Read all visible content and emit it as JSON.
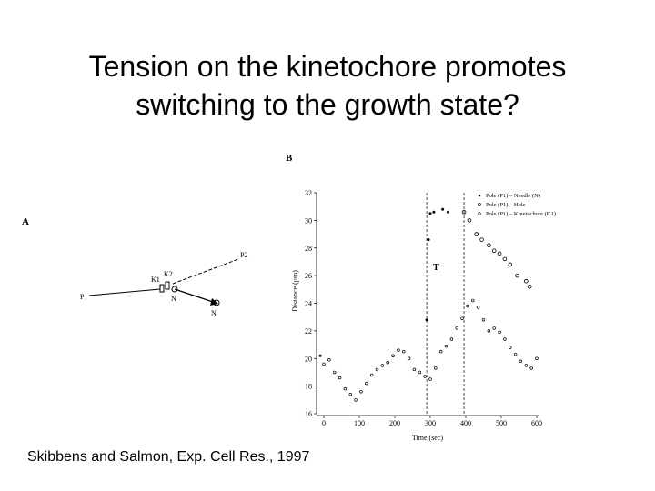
{
  "slide": {
    "title_line1": "Tension on the kinetochore promotes",
    "title_line2": "switching to the growth state?",
    "citation": "Skibbens and Salmon, Exp. Cell Res., 1997"
  },
  "panel_a": {
    "label": "A",
    "points": {
      "P": "P",
      "P2": "P2",
      "K1": "K1",
      "K2": "K2",
      "N": "N",
      "N_moved": "N"
    }
  },
  "chart_data": {
    "type": "scatter",
    "panel_label": "B",
    "xlabel": "Time (sec)",
    "ylabel": "Distance (μm)",
    "xlim": [
      0,
      600
    ],
    "ylim": [
      16,
      32
    ],
    "x_ticks": [
      0,
      100,
      200,
      300,
      400,
      500,
      600
    ],
    "x_tick_labels": [
      "0",
      "100",
      "200",
      "300",
      "400",
      "500",
      "600"
    ],
    "y_ticks": [
      16,
      18,
      20,
      22,
      24,
      26,
      28,
      30,
      32
    ],
    "y_tick_labels": [
      "16",
      "18",
      "20",
      "22",
      "24",
      "26",
      "28",
      "30",
      "32"
    ],
    "annotation": "T",
    "vertical_dashed_lines_x": [
      290,
      395
    ],
    "legend": [
      "Pole (P1) – Needle (N)",
      "Pole (P1) – Hole",
      "Pole (P1) – Kinetochore (K1)"
    ],
    "series": [
      {
        "name": "Pole (P1) – Needle (N)",
        "marker": "filled",
        "x": [
          -10,
          290,
          295,
          300,
          310,
          335,
          350
        ],
        "y": [
          20.2,
          22.8,
          28.6,
          30.5,
          30.6,
          30.8,
          30.6
        ]
      },
      {
        "name": "Pole (P1) – Hole",
        "marker": "open-large",
        "x": [
          395,
          410,
          430,
          445,
          465,
          480,
          495,
          510,
          525,
          545,
          570,
          580
        ],
        "y": [
          30.6,
          30.0,
          29.0,
          28.6,
          28.2,
          27.8,
          27.6,
          27.2,
          26.8,
          26.0,
          25.6,
          25.2
        ]
      },
      {
        "name": "Pole (P1) – Kinetochore (K1)",
        "marker": "open-small",
        "x": [
          0,
          15,
          30,
          45,
          60,
          75,
          90,
          105,
          120,
          135,
          150,
          165,
          180,
          195,
          210,
          225,
          240,
          255,
          270,
          285,
          300,
          315,
          330,
          345,
          360,
          375,
          390,
          405,
          420,
          435,
          450,
          465,
          480,
          495,
          510,
          525,
          540,
          555,
          570,
          585,
          600
        ],
        "y": [
          19.6,
          19.9,
          19.0,
          18.6,
          17.8,
          17.4,
          17.0,
          17.6,
          18.2,
          18.8,
          19.2,
          19.5,
          19.7,
          20.2,
          20.6,
          20.5,
          20.0,
          19.2,
          19.0,
          18.7,
          18.5,
          19.3,
          20.5,
          20.9,
          21.4,
          22.2,
          22.9,
          23.8,
          24.2,
          23.7,
          22.8,
          22.0,
          22.2,
          21.9,
          21.4,
          20.8,
          20.3,
          19.8,
          19.5,
          19.3,
          20.0
        ]
      }
    ]
  }
}
